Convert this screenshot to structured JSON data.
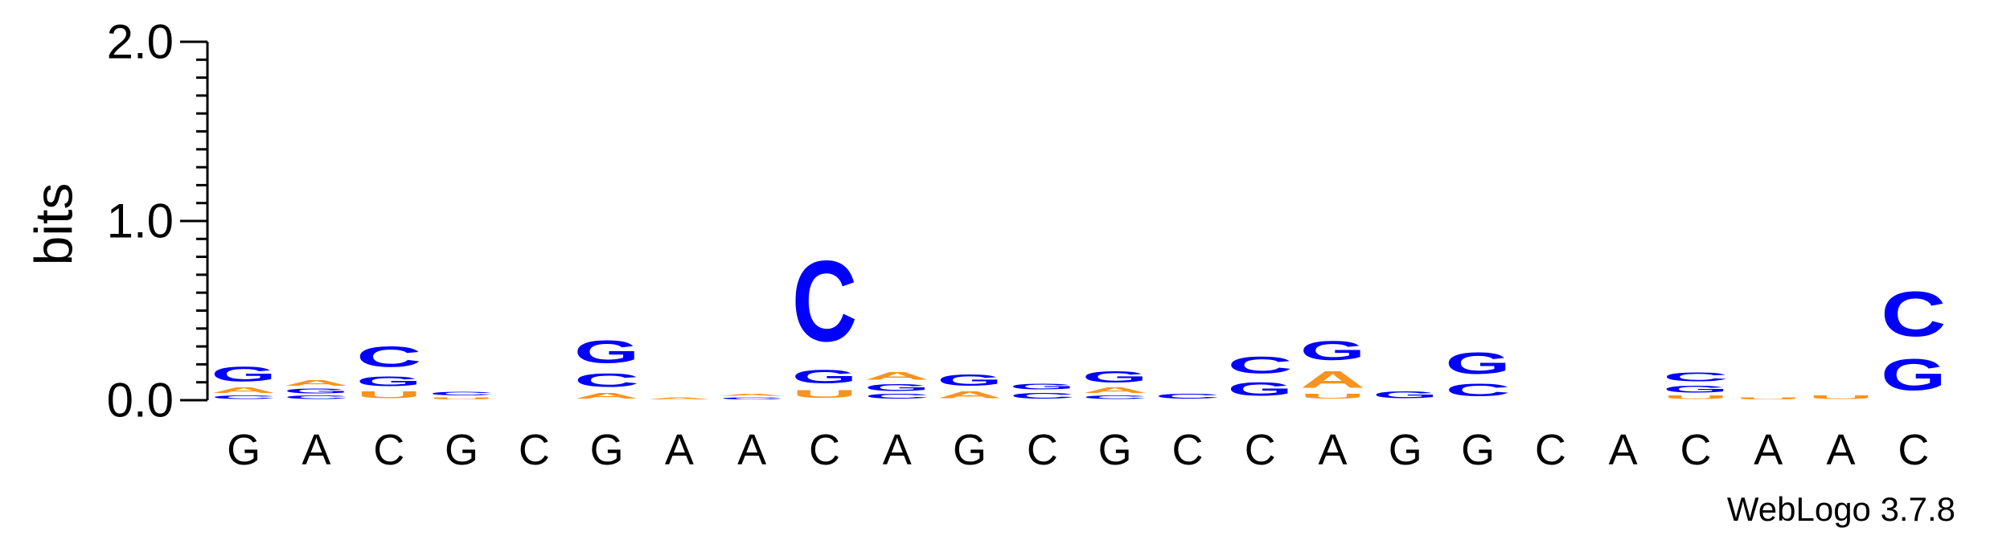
{
  "chart_data": {
    "type": "sequence-logo",
    "ylabel": "bits",
    "ylim": [
      0,
      2.0
    ],
    "yticks": [
      "0.0",
      "1.0",
      "2.0"
    ],
    "ytick_values": [
      0,
      1.0,
      2.0
    ],
    "footer": "WebLogo 3.7.8",
    "colors": {
      "A": "#f7931e",
      "U": "#f7931e",
      "C": "#0000ff",
      "G": "#0000ff"
    },
    "positions": [
      {
        "label": "G",
        "stack": [
          {
            "letter": "C",
            "bits": 0.03
          },
          {
            "letter": "A",
            "bits": 0.05
          },
          {
            "letter": "G",
            "bits": 0.13
          }
        ]
      },
      {
        "label": "A",
        "stack": [
          {
            "letter": "C",
            "bits": 0.03
          },
          {
            "letter": "G",
            "bits": 0.04
          },
          {
            "letter": "A",
            "bits": 0.05
          }
        ]
      },
      {
        "label": "C",
        "stack": [
          {
            "letter": "U",
            "bits": 0.06
          },
          {
            "letter": "G",
            "bits": 0.09
          },
          {
            "letter": "C",
            "bits": 0.18
          }
        ]
      },
      {
        "label": "G",
        "stack": [
          {
            "letter": "U",
            "bits": 0.02
          },
          {
            "letter": "C",
            "bits": 0.03
          }
        ]
      },
      {
        "label": "C",
        "stack": []
      },
      {
        "label": "G",
        "stack": [
          {
            "letter": "A",
            "bits": 0.05
          },
          {
            "letter": "C",
            "bits": 0.12
          },
          {
            "letter": "G",
            "bits": 0.2
          }
        ]
      },
      {
        "label": "A",
        "stack": [
          {
            "letter": "A",
            "bits": 0.02
          }
        ]
      },
      {
        "label": "A",
        "stack": [
          {
            "letter": "C",
            "bits": 0.02
          },
          {
            "letter": "A",
            "bits": 0.02
          }
        ]
      },
      {
        "label": "C",
        "stack": [
          {
            "letter": "U",
            "bits": 0.07
          },
          {
            "letter": "G",
            "bits": 0.12
          },
          {
            "letter": "C",
            "bits": 0.72
          }
        ]
      },
      {
        "label": "A",
        "stack": [
          {
            "letter": "C",
            "bits": 0.04
          },
          {
            "letter": "G",
            "bits": 0.06
          },
          {
            "letter": "A",
            "bits": 0.07
          }
        ]
      },
      {
        "label": "G",
        "stack": [
          {
            "letter": "A",
            "bits": 0.06
          },
          {
            "letter": "G",
            "bits": 0.1
          }
        ]
      },
      {
        "label": "C",
        "stack": [
          {
            "letter": "C",
            "bits": 0.05
          },
          {
            "letter": "G",
            "bits": 0.05
          }
        ]
      },
      {
        "label": "G",
        "stack": [
          {
            "letter": "C",
            "bits": 0.03
          },
          {
            "letter": "A",
            "bits": 0.05
          },
          {
            "letter": "G",
            "bits": 0.1
          }
        ]
      },
      {
        "label": "C",
        "stack": [
          {
            "letter": "C",
            "bits": 0.04
          }
        ]
      },
      {
        "label": "C",
        "stack": [
          {
            "letter": "G",
            "bits": 0.12
          },
          {
            "letter": "C",
            "bits": 0.15
          }
        ]
      },
      {
        "label": "A",
        "stack": [
          {
            "letter": "U",
            "bits": 0.04
          },
          {
            "letter": "A",
            "bits": 0.15
          },
          {
            "letter": "G",
            "bits": 0.17
          }
        ]
      },
      {
        "label": "G",
        "stack": [
          {
            "letter": "G",
            "bits": 0.06
          }
        ]
      },
      {
        "label": "G",
        "stack": [
          {
            "letter": "C",
            "bits": 0.11
          },
          {
            "letter": "G",
            "bits": 0.19
          }
        ]
      },
      {
        "label": "C",
        "stack": []
      },
      {
        "label": "A",
        "stack": []
      },
      {
        "label": "C",
        "stack": [
          {
            "letter": "U",
            "bits": 0.03
          },
          {
            "letter": "G",
            "bits": 0.06
          },
          {
            "letter": "C",
            "bits": 0.08
          }
        ]
      },
      {
        "label": "A",
        "stack": [
          {
            "letter": "U",
            "bits": 0.02
          }
        ]
      },
      {
        "label": "A",
        "stack": [
          {
            "letter": "U",
            "bits": 0.03
          }
        ]
      },
      {
        "label": "C",
        "stack": [
          {
            "letter": "G",
            "bits": 0.28
          },
          {
            "letter": "C",
            "bits": 0.4
          }
        ]
      }
    ]
  }
}
